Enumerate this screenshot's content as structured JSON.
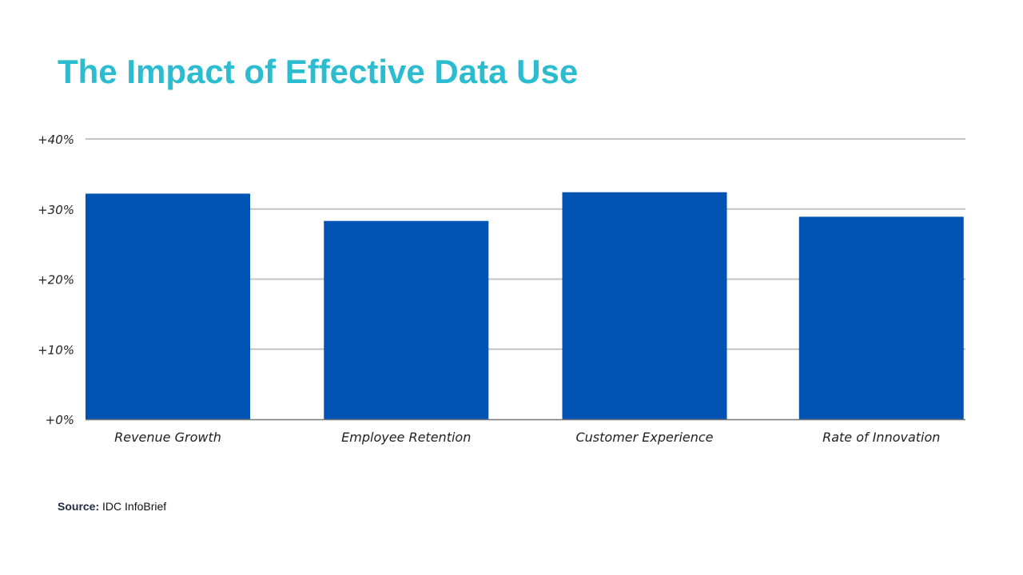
{
  "chart_data": {
    "type": "bar",
    "title": "The Impact of Effective Data Use",
    "categories": [
      "Revenue Growth",
      "Employee Retention",
      "Customer Experience",
      "Rate of Innovation"
    ],
    "values": [
      32.2,
      28.3,
      32.4,
      28.9
    ],
    "ylim": [
      0,
      40
    ],
    "yticks": [
      0,
      10,
      20,
      30,
      40
    ],
    "ytick_labels": [
      "+0%",
      "+10%",
      "+20%",
      "+30%",
      "+40%"
    ],
    "xlabel": "",
    "ylabel": "",
    "grid": true,
    "bar_color": "#0353b5",
    "grid_color": "#c4c4c4"
  },
  "source": {
    "label": "Source:",
    "text": "IDC InfoBrief"
  }
}
